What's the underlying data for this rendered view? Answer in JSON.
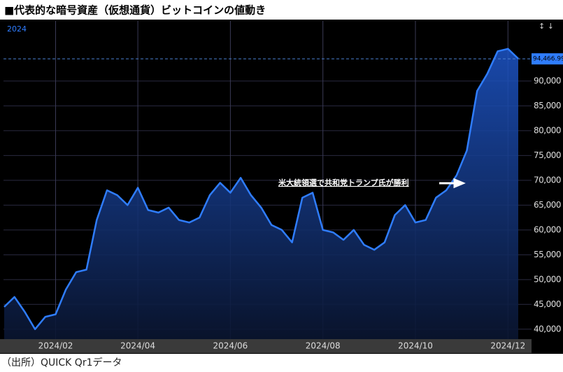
{
  "chart_data": {
    "type": "line",
    "title": "■代表的な暗号資産（仮想通貨）ビットコインの値動き",
    "source": "（出所）QUICK Qr1データ",
    "annotation": "米大統領選で共和党トランプ氏が勝利",
    "current_value": {
      "value": 94466.99,
      "label": "94,466.99"
    },
    "categories": [
      null,
      null,
      null,
      null,
      null,
      "2024/02",
      null,
      null,
      null,
      null,
      null,
      null,
      null,
      "2024/04",
      null,
      null,
      null,
      null,
      null,
      null,
      null,
      null,
      "2024/06",
      null,
      null,
      null,
      null,
      null,
      null,
      null,
      null,
      "2024/08",
      null,
      null,
      null,
      null,
      null,
      null,
      null,
      null,
      "2024/10",
      null,
      null,
      null,
      null,
      null,
      null,
      null,
      null,
      "2024/12",
      null
    ],
    "series": [
      {
        "name": "2024",
        "color": "#2f7dff",
        "values": [
          44500,
          46500,
          43500,
          40000,
          42500,
          43000,
          48000,
          51500,
          52000,
          62000,
          68000,
          67000,
          65000,
          68500,
          64000,
          63500,
          64500,
          62000,
          61500,
          62500,
          67000,
          69500,
          67500,
          70500,
          67000,
          64500,
          61000,
          60000,
          57500,
          66500,
          67500,
          60000,
          59500,
          58000,
          60000,
          57000,
          56000,
          57500,
          63000,
          65000,
          61500,
          62000,
          66500,
          68000,
          71000,
          76000,
          88000,
          91500,
          96000,
          96500,
          94500
        ]
      }
    ],
    "ylim": [
      38000,
      102100
    ],
    "yticks": [
      {
        "value": 40000,
        "label": "40,000"
      },
      {
        "value": 45000,
        "label": "45,000"
      },
      {
        "value": 50000,
        "label": "50,000"
      },
      {
        "value": 55000,
        "label": "55,000"
      },
      {
        "value": 60000,
        "label": "60,000"
      },
      {
        "value": 65000,
        "label": "65,000"
      },
      {
        "value": 70000,
        "label": "70,000"
      },
      {
        "value": 75000,
        "label": "75,000"
      },
      {
        "value": 80000,
        "label": "80,000"
      },
      {
        "value": 85000,
        "label": "85,000"
      },
      {
        "value": 90000,
        "label": "90,000"
      }
    ],
    "grid": true
  }
}
